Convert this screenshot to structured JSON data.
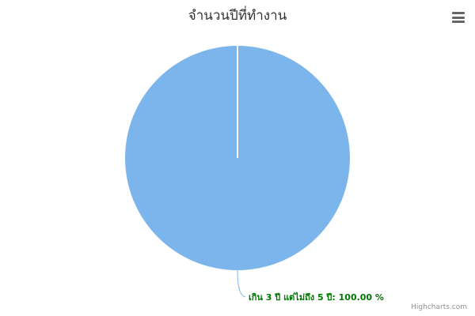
{
  "chart_data": {
    "type": "pie",
    "title": "จำนวนปีที่ทำงาน",
    "slices": [
      {
        "name": "เกิน 3 ปี แต่ไม่ถึง 5 ปี",
        "value": 100.0,
        "label": "เกิน 3 ปี แต่ไม่ถึง 5 ปี: 100.00 %"
      }
    ],
    "colors": [
      "#7cb5ec"
    ],
    "label_color": "#007700",
    "legend": "none"
  },
  "menu": {
    "icon": "hamburger-menu-icon"
  },
  "credits": {
    "text": "Highcharts.com"
  }
}
